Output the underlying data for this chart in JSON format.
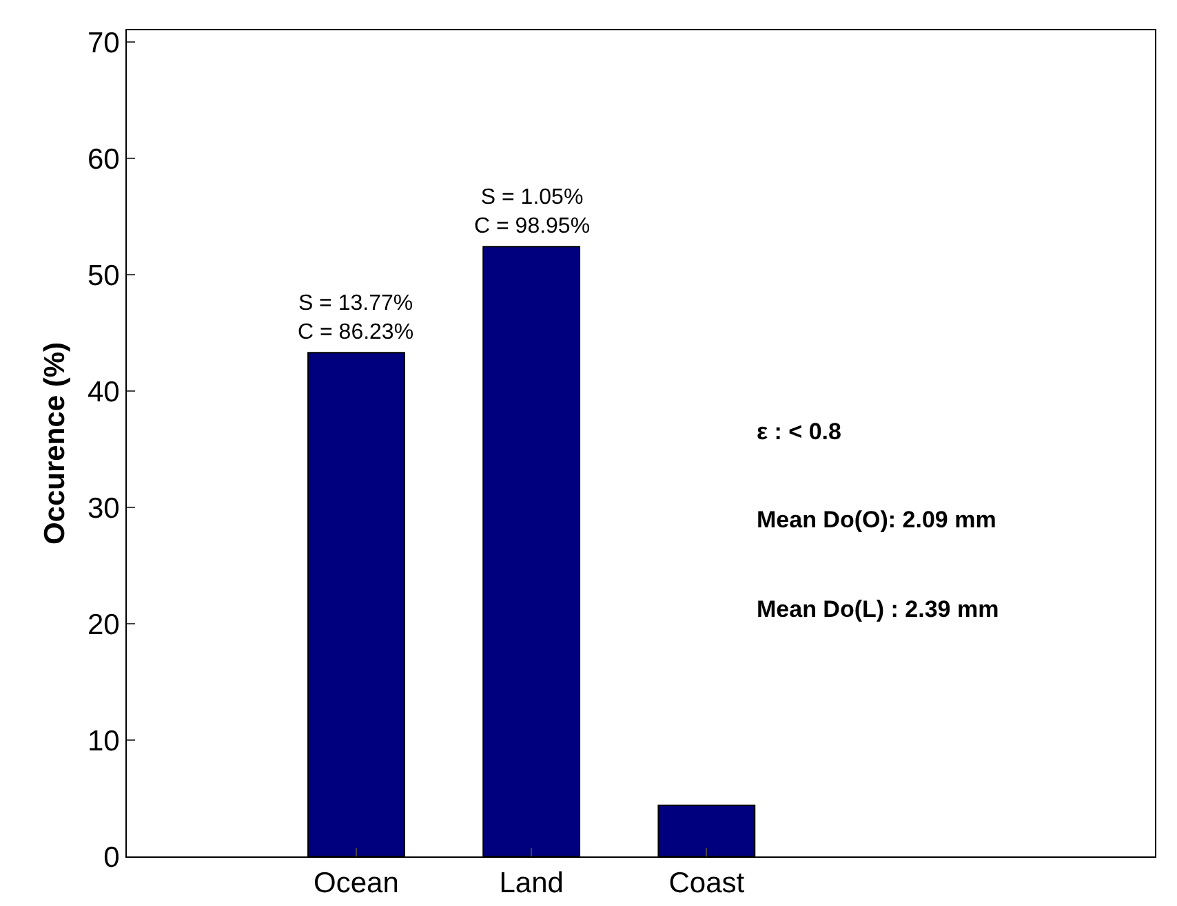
{
  "chart_data": {
    "type": "bar",
    "ylabel": "Occurence (%)",
    "categories": [
      "Ocean",
      "Land",
      "Coast"
    ],
    "values": [
      43.3,
      52.4,
      4.4
    ],
    "color": "#00007f",
    "ylim": [
      0,
      71
    ],
    "yticks": [
      0,
      10,
      20,
      30,
      40,
      50,
      60,
      70
    ],
    "grid": false,
    "legend": false,
    "annotations": [
      {
        "text": "S = 13.77%\nC = 86.23%",
        "x": "Ocean",
        "y": 43.3
      },
      {
        "text": "S = 1.05%\nC = 98.95%",
        "x": "Land",
        "y": 52.4
      },
      "ε : < 0.8",
      "Mean Do(O): 2.09 mm",
      "Mean Do(L) : 2.39 mm"
    ]
  }
}
